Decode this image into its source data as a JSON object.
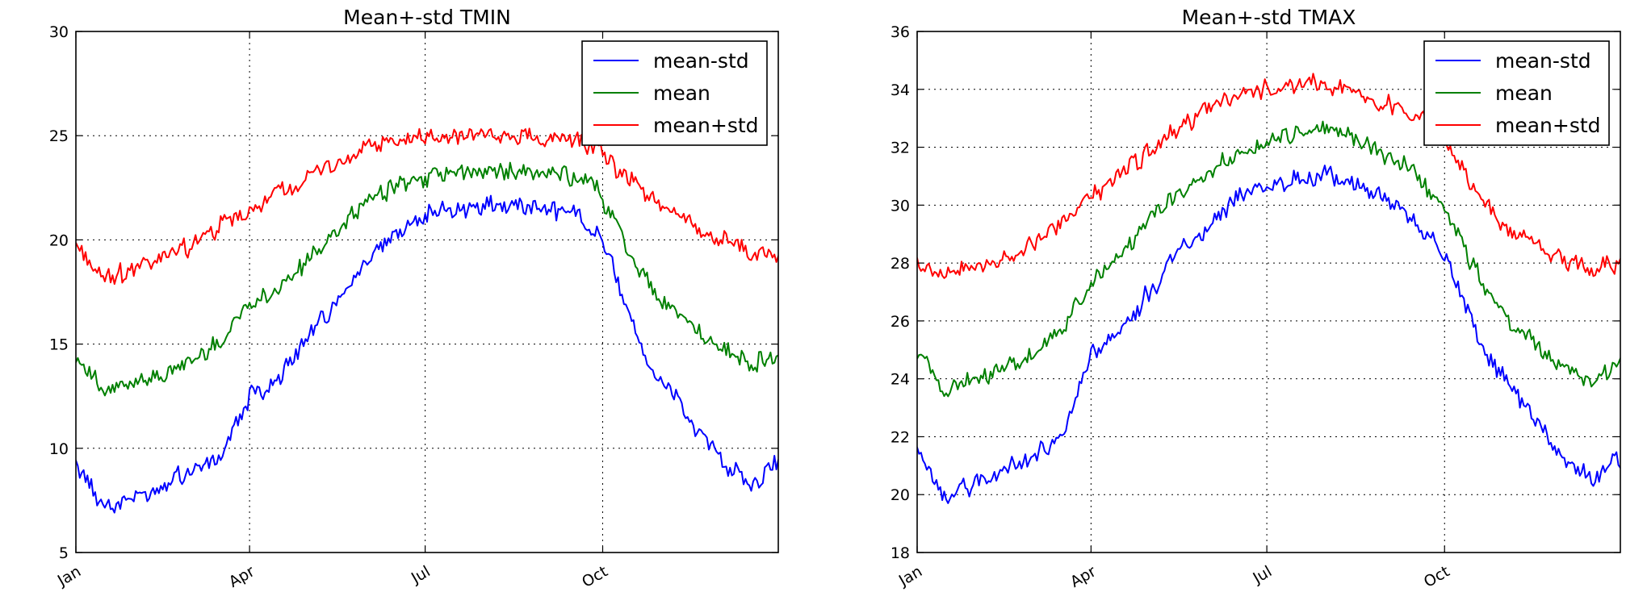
{
  "chart_data": [
    {
      "type": "line",
      "title": "Mean+-std   TMIN",
      "xlabel": "",
      "ylabel": "",
      "x_ticks": [
        "Jan",
        "Apr",
        "Jul",
        "Oct"
      ],
      "x_tick_days": [
        0,
        90,
        181,
        273
      ],
      "x_range_days": [
        0,
        364
      ],
      "y_ticks": [
        "5",
        "10",
        "15",
        "20",
        "25",
        "30"
      ],
      "ylim": [
        5,
        30
      ],
      "grid": true,
      "legend_position": "top-right",
      "x_days": [
        0,
        15,
        30,
        45,
        60,
        75,
        90,
        105,
        120,
        135,
        150,
        165,
        180,
        195,
        210,
        225,
        240,
        255,
        270,
        280,
        290,
        300,
        310,
        320,
        330,
        340,
        350,
        364
      ],
      "series": [
        {
          "name": "mean-std",
          "color": "#0000ff",
          "values": [
            9.3,
            7.2,
            7.6,
            8.4,
            9.0,
            9.7,
            12.5,
            13.2,
            15.3,
            17.0,
            19.0,
            20.3,
            21.2,
            21.5,
            21.7,
            21.8,
            21.5,
            21.4,
            20.5,
            18.2,
            15.5,
            13.5,
            12.5,
            11.0,
            10.0,
            9.0,
            8.3,
            9.3
          ]
        },
        {
          "name": "mean",
          "color": "#008000",
          "values": [
            14.5,
            12.6,
            13.1,
            13.6,
            14.2,
            15.2,
            17.0,
            17.5,
            19.0,
            20.3,
            21.7,
            22.6,
            23.0,
            23.1,
            23.3,
            23.4,
            23.2,
            23.1,
            22.5,
            20.8,
            18.7,
            17.5,
            16.8,
            15.8,
            15.0,
            14.5,
            14.0,
            14.4
          ]
        },
        {
          "name": "mean+std",
          "color": "#ff0000",
          "values": [
            19.8,
            18.0,
            18.7,
            19.2,
            19.7,
            20.7,
            21.3,
            22.2,
            23.0,
            23.7,
            24.4,
            24.7,
            24.9,
            24.9,
            25.0,
            25.0,
            24.9,
            24.8,
            24.5,
            23.5,
            22.5,
            21.8,
            21.3,
            20.7,
            20.2,
            19.8,
            19.4,
            19.2
          ]
        }
      ]
    },
    {
      "type": "line",
      "title": "Mean+-std   TMAX",
      "xlabel": "",
      "ylabel": "",
      "x_ticks": [
        "Jan",
        "Apr",
        "Jul",
        "Oct"
      ],
      "x_tick_days": [
        0,
        90,
        181,
        273
      ],
      "x_range_days": [
        0,
        364
      ],
      "y_ticks": [
        "18",
        "20",
        "22",
        "24",
        "26",
        "28",
        "30",
        "32",
        "34",
        "36"
      ],
      "ylim": [
        18,
        36
      ],
      "grid": true,
      "legend_position": "top-right",
      "x_days": [
        0,
        15,
        30,
        45,
        60,
        75,
        90,
        105,
        120,
        135,
        150,
        165,
        180,
        195,
        210,
        225,
        240,
        255,
        270,
        280,
        290,
        300,
        310,
        320,
        330,
        340,
        350,
        364
      ],
      "series": [
        {
          "name": "mean-std",
          "color": "#0000ff",
          "values": [
            21.5,
            19.8,
            20.4,
            20.8,
            21.4,
            21.8,
            24.8,
            25.6,
            27.0,
            28.3,
            29.2,
            30.2,
            30.7,
            30.9,
            31.1,
            30.8,
            30.3,
            29.6,
            28.5,
            27.3,
            25.5,
            24.3,
            23.4,
            22.5,
            21.7,
            21.0,
            20.6,
            21.2
          ]
        },
        {
          "name": "mean",
          "color": "#008000",
          "values": [
            24.8,
            23.6,
            24.0,
            24.3,
            24.8,
            25.7,
            27.2,
            28.2,
            29.5,
            30.4,
            31.0,
            31.8,
            32.2,
            32.5,
            32.6,
            32.4,
            31.8,
            31.2,
            30.2,
            29.0,
            27.6,
            26.5,
            25.7,
            25.2,
            24.6,
            24.2,
            24.0,
            24.5
          ]
        },
        {
          "name": "mean+std",
          "color": "#ff0000",
          "values": [
            28.0,
            27.5,
            27.8,
            28.1,
            28.7,
            29.4,
            30.3,
            31.0,
            31.8,
            32.6,
            33.3,
            33.8,
            34.0,
            34.1,
            34.2,
            34.0,
            33.6,
            33.1,
            32.7,
            31.5,
            30.4,
            29.6,
            29.1,
            28.6,
            28.3,
            28.0,
            27.9,
            28.0
          ]
        }
      ]
    }
  ]
}
